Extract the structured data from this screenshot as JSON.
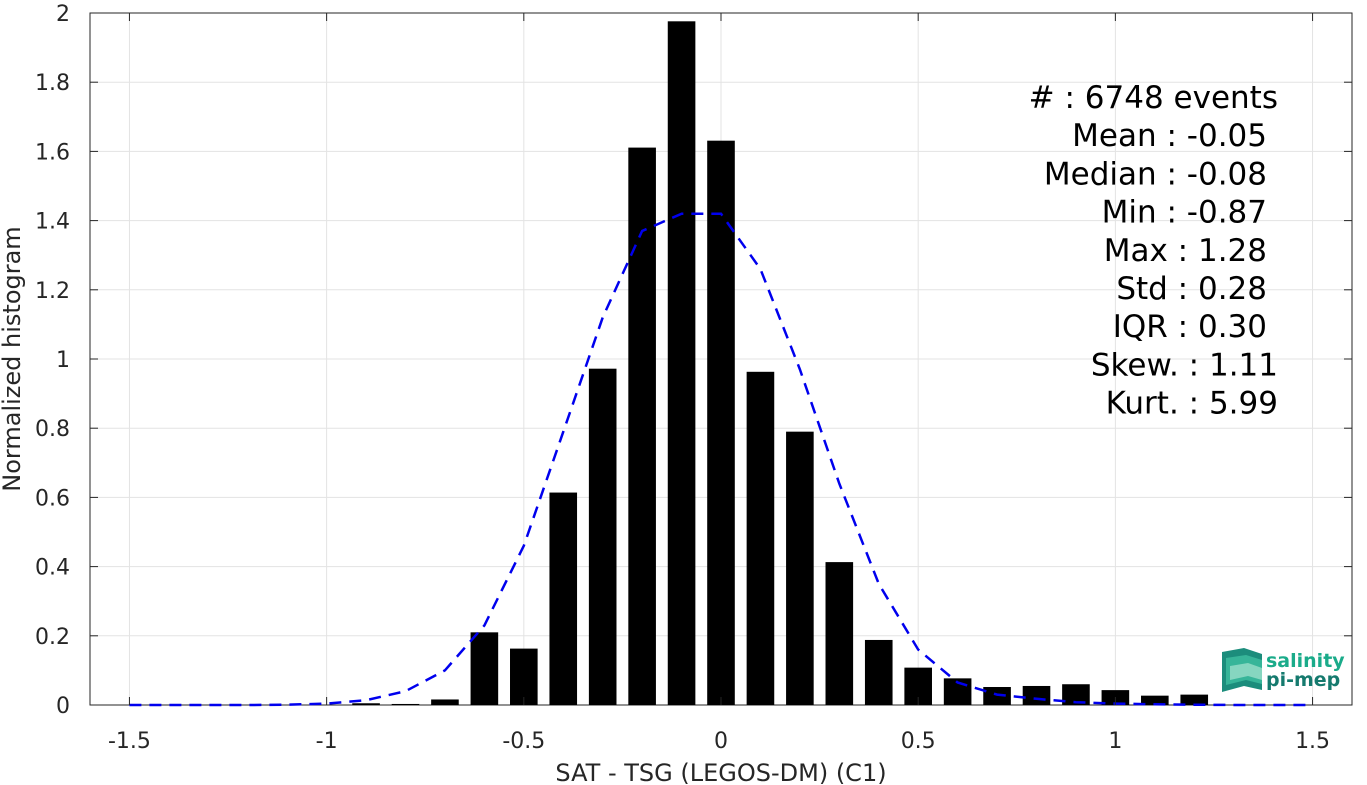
{
  "chart_data": {
    "type": "bar",
    "xlabel": "SAT - TSG (LEGOS-DM) (C1)",
    "ylabel": "Normalized histogram",
    "xlim": [
      -1.6,
      1.6
    ],
    "ylim": [
      0,
      2
    ],
    "grid": true,
    "xticks": [
      -1.5,
      -1,
      -0.5,
      0,
      0.5,
      1,
      1.5
    ],
    "xtick_labels": [
      "-1.5",
      "-1",
      "-0.5",
      "0",
      "0.5",
      "1",
      "1.5"
    ],
    "yticks": [
      0,
      0.2,
      0.4,
      0.6,
      0.8,
      1,
      1.2,
      1.4,
      1.6,
      1.8,
      2
    ],
    "ytick_labels": [
      "0",
      "0.2",
      "0.4",
      "0.6",
      "0.8",
      "1",
      "1.2",
      "1.4",
      "1.6",
      "1.8",
      "2"
    ],
    "bar_width": 0.07,
    "bar_color": "#000000",
    "bars": {
      "x": [
        -0.9,
        -0.8,
        -0.7,
        -0.6,
        -0.5,
        -0.4,
        -0.3,
        -0.2,
        -0.1,
        0.0,
        0.1,
        0.2,
        0.3,
        0.4,
        0.5,
        0.6,
        0.7,
        0.8,
        0.9,
        1.0,
        1.1,
        1.2
      ],
      "values": [
        0.005,
        0.003,
        0.016,
        0.21,
        0.163,
        0.614,
        0.972,
        1.611,
        1.976,
        1.631,
        0.963,
        0.79,
        0.413,
        0.188,
        0.108,
        0.077,
        0.052,
        0.055,
        0.06,
        0.043,
        0.027,
        0.03
      ]
    },
    "fit_curve": {
      "style": "dashed",
      "color": "#0000ee",
      "x": [
        -1.5,
        -1.4,
        -1.3,
        -1.2,
        -1.1,
        -1.0,
        -0.9,
        -0.8,
        -0.7,
        -0.6,
        -0.5,
        -0.4,
        -0.3,
        -0.2,
        -0.1,
        0.0,
        0.1,
        0.2,
        0.3,
        0.4,
        0.5,
        0.6,
        0.7,
        0.8,
        0.9,
        1.0,
        1.1,
        1.2,
        1.3,
        1.4,
        1.5
      ],
      "y": [
        0.0,
        0.0,
        0.0,
        0.0,
        0.001,
        0.004,
        0.014,
        0.04,
        0.1,
        0.23,
        0.46,
        0.79,
        1.12,
        1.37,
        1.42,
        1.42,
        1.26,
        0.97,
        0.64,
        0.35,
        0.16,
        0.065,
        0.03,
        0.018,
        0.008,
        0.004,
        0.002,
        0.001,
        0.0,
        0.0,
        0.0
      ]
    },
    "stats": [
      "#  : 6748 events",
      "Mean : -0.05",
      "Median : -0.08",
      "Min : -0.87",
      "Max : 1.28",
      "Std : 0.28",
      "IQR : 0.30",
      "Skew. : 1.11",
      "Kurt. : 5.99"
    ]
  },
  "logo": {
    "line1": "salinity",
    "line2": "pi-mep",
    "color1": "#1aab8a",
    "color2": "#157a6e"
  }
}
